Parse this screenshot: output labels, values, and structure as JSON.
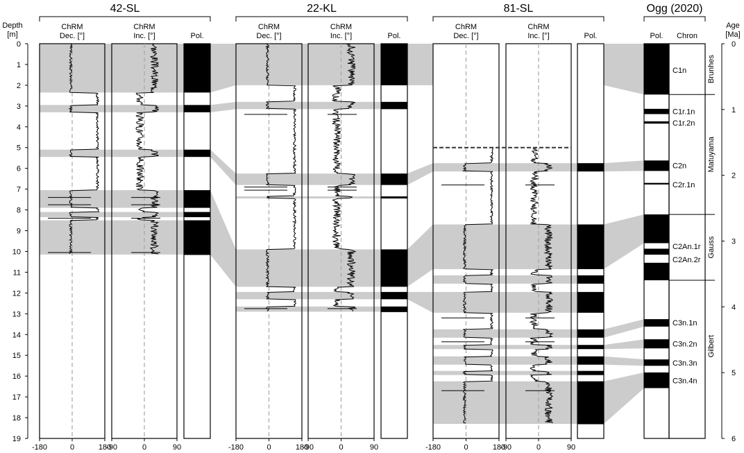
{
  "depth_axis": {
    "label_line1": "Depth",
    "label_line2": "[m]",
    "min": 0,
    "max": 19,
    "ticks": [
      0,
      1,
      2,
      3,
      4,
      5,
      6,
      7,
      8,
      9,
      10,
      11,
      12,
      13,
      14,
      15,
      16,
      17,
      18,
      19
    ]
  },
  "age_axis": {
    "label_line1": "Age",
    "label_line2": "[Ma]",
    "min": 0,
    "max": 6,
    "ticks": [
      0,
      1,
      2,
      3,
      4,
      5,
      6
    ]
  },
  "cores": [
    {
      "name": "42-SL",
      "max_depth": 10.15,
      "dec_header": [
        "ChRM",
        "Dec. [°]"
      ],
      "inc_header": [
        "ChRM",
        "Inc. [°]"
      ],
      "pol_header": "Pol.",
      "dec_ticks": [
        "-180",
        "0",
        "180"
      ],
      "inc_ticks": [
        "-90",
        "0",
        "90"
      ],
      "normal_intervals": [
        [
          0,
          2.35
        ],
        [
          2.95,
          3.3
        ],
        [
          5.1,
          5.45
        ],
        [
          7.05,
          7.9
        ],
        [
          8.1,
          8.35
        ],
        [
          8.5,
          10.15
        ]
      ],
      "spikes": [
        7.4,
        7.75,
        8.4,
        10.05
      ]
    },
    {
      "name": "22-KL",
      "max_depth": 12.9,
      "dec_header": [
        "ChRM",
        "Dec. [°]"
      ],
      "inc_header": [
        "ChRM",
        "Inc. [°]"
      ],
      "pol_header": "Pol.",
      "dec_ticks": [
        "-180",
        "0",
        "180"
      ],
      "inc_ticks": [
        "-90",
        "0",
        "90"
      ],
      "normal_intervals": [
        [
          0,
          2.0
        ],
        [
          2.8,
          3.15
        ],
        [
          6.25,
          6.8
        ],
        [
          7.35,
          7.45
        ],
        [
          9.9,
          11.7
        ],
        [
          11.95,
          12.3
        ],
        [
          12.65,
          12.9
        ]
      ],
      "spikes": [
        3.4,
        6.9,
        7.05,
        12.75
      ]
    },
    {
      "name": "81-SL",
      "max_depth": 18.3,
      "data_top": 5.0,
      "dec_header": [
        "ChRM",
        "Dec. [°]"
      ],
      "inc_header": [
        "ChRM",
        "Inc. [°]"
      ],
      "pol_header": "Pol.",
      "dec_ticks": [
        "-180",
        "0",
        "180"
      ],
      "inc_ticks": [
        "-90",
        "0",
        "90"
      ],
      "normal_intervals": [
        [
          5.75,
          6.15
        ],
        [
          8.7,
          10.85
        ],
        [
          11.15,
          11.55
        ],
        [
          11.95,
          12.95
        ],
        [
          13.75,
          14.15
        ],
        [
          14.5,
          14.7
        ],
        [
          15.05,
          15.45
        ],
        [
          15.75,
          15.95
        ],
        [
          16.25,
          18.3
        ]
      ],
      "spikes": [
        6.8,
        13.2,
        14.35,
        16.7
      ]
    }
  ],
  "ogg": {
    "title": "Ogg (2020)",
    "pol_header": "Pol.",
    "chron_header": "Chron",
    "normal_intervals_ma": [
      [
        0,
        0.773
      ],
      [
        0.99,
        1.07
      ],
      [
        1.18,
        1.215
      ],
      [
        1.775,
        1.934
      ],
      [
        2.116,
        2.14
      ],
      [
        2.595,
        3.032
      ],
      [
        3.116,
        3.207
      ],
      [
        3.33,
        3.596
      ],
      [
        4.187,
        4.3
      ],
      [
        4.493,
        4.631
      ],
      [
        4.799,
        4.896
      ],
      [
        4.997,
        5.235
      ]
    ],
    "chron_labels": [
      {
        "label": "C1n",
        "age": 0.4
      },
      {
        "label": "C1r.1n",
        "age": 1.03
      },
      {
        "label": "C1r.2n",
        "age": 1.2
      },
      {
        "label": "C2n",
        "age": 1.85
      },
      {
        "label": "C2r.1n",
        "age": 2.14
      },
      {
        "label": "C2An.1r",
        "age": 3.08
      },
      {
        "label": "C2An.2r",
        "age": 3.28
      },
      {
        "label": "C3n.1n",
        "age": 4.24
      },
      {
        "label": "C3n.2n",
        "age": 4.56
      },
      {
        "label": "C3n.3n",
        "age": 4.85
      },
      {
        "label": "C3n.4n",
        "age": 5.12
      }
    ],
    "epochs": [
      {
        "label": "Brunhes",
        "from": 0,
        "to": 0.773
      },
      {
        "label": "Matuyama",
        "from": 0.773,
        "to": 2.595
      },
      {
        "label": "Gauss",
        "from": 2.595,
        "to": 3.596
      },
      {
        "label": "Gilbert",
        "from": 3.596,
        "to": 6.0
      }
    ]
  },
  "chart_data": {
    "type": "line",
    "x_axes": {
      "declination": [
        -180,
        180
      ],
      "inclination": [
        -90,
        90
      ]
    },
    "y_axis": {
      "quantity": "Depth",
      "unit": "m",
      "range": [
        0,
        19
      ]
    },
    "series": [
      {
        "core": "42-SL",
        "normal_polarity_depths_m": [
          [
            0,
            2.35
          ],
          [
            2.95,
            3.3
          ],
          [
            5.1,
            5.45
          ],
          [
            7.05,
            7.9
          ],
          [
            8.1,
            8.35
          ],
          [
            8.5,
            10.15
          ]
        ]
      },
      {
        "core": "22-KL",
        "normal_polarity_depths_m": [
          [
            0,
            2.0
          ],
          [
            2.8,
            3.15
          ],
          [
            6.25,
            6.8
          ],
          [
            7.35,
            7.45
          ],
          [
            9.9,
            11.7
          ],
          [
            11.95,
            12.3
          ],
          [
            12.65,
            12.9
          ]
        ]
      },
      {
        "core": "81-SL",
        "normal_polarity_depths_m": [
          [
            5.75,
            6.15
          ],
          [
            8.7,
            10.85
          ],
          [
            11.15,
            11.55
          ],
          [
            11.95,
            12.95
          ],
          [
            13.75,
            14.15
          ],
          [
            14.5,
            14.7
          ],
          [
            15.05,
            15.45
          ],
          [
            15.75,
            15.95
          ],
          [
            16.25,
            18.3
          ]
        ]
      }
    ],
    "colors": {
      "normal": "#000000",
      "reversed": "#ffffff",
      "correlation": "#cccccc",
      "zero_line": "#a6a6a6"
    }
  }
}
